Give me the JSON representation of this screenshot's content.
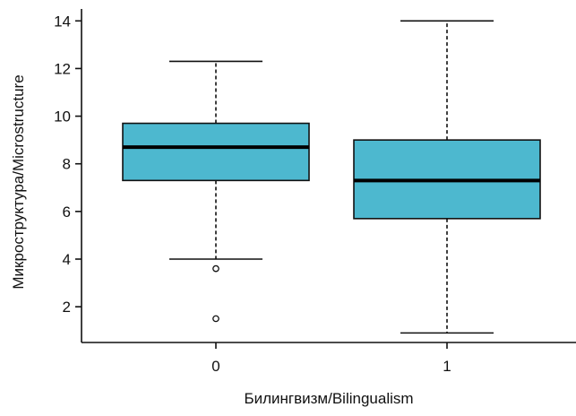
{
  "chart_data": {
    "type": "box",
    "xlabel": "Билингвизм/Bilingualism",
    "ylabel": "Микроструктура/Microstructure",
    "ylim": [
      0.5,
      14.5
    ],
    "yticks": [
      2,
      4,
      6,
      8,
      10,
      12,
      14
    ],
    "categories": [
      "0",
      "1"
    ],
    "boxes": [
      {
        "category": "0",
        "whisker_low": 4.0,
        "q1": 7.3,
        "median": 8.7,
        "q3": 9.7,
        "whisker_high": 12.3,
        "outliers": [
          3.6,
          1.5
        ]
      },
      {
        "category": "1",
        "whisker_low": 0.9,
        "q1": 5.7,
        "median": 7.3,
        "q3": 9.0,
        "whisker_high": 14.0,
        "outliers": []
      }
    ],
    "box_color": "#4DB8CF",
    "grid": false
  }
}
